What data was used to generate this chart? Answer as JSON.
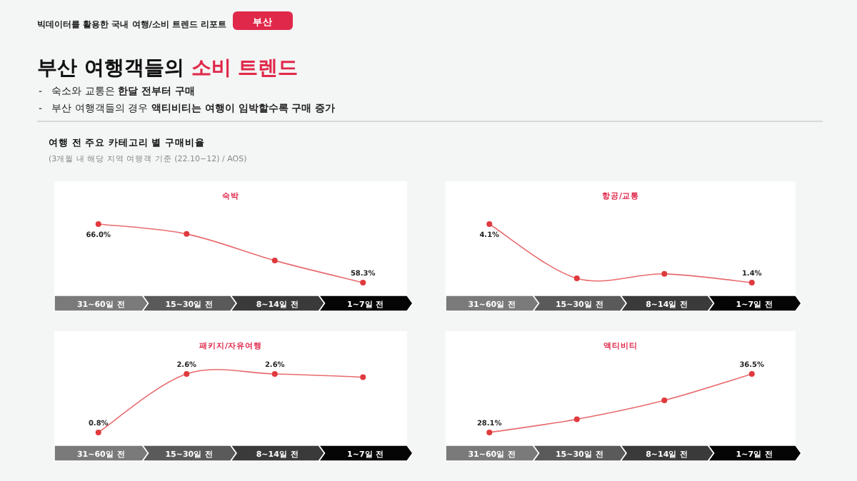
{
  "chart_data": [
    {
      "type": "other",
      "title": "부산 여행객들의 **소비 트렌드**",
      "subtitle": "여행 전 주요 카테고리 별 구매비율",
      "annotations": [
        "빅데이터를 활용한 국내 여행/소비 트렌드 리포트",
        "부산",
        "-   숙소와 교통은 **한달 전부터 구매**",
        "-   부산 여행객들의 경우 **액티비티는 여행이 임박할수록 구매 증가**",
        "(3개월 내 해당 지역 여행객 기준 (22.10~12) / AOS)"
      ]
    },
    {
      "type": "line",
      "title": "숙박",
      "categories": [
        "31~60일 전",
        "15~30일 전",
        "8~14일 전",
        "1~7일 전"
      ],
      "values": [
        66.0,
        64.7,
        61.2,
        58.3
      ],
      "value_labels": [
        "66.0%",
        null,
        null,
        "58.3%"
      ],
      "color": "#e03a3e",
      "tick_labels": "x",
      "marker": "circle"
    },
    {
      "type": "line",
      "title": "항공/교통",
      "categories": [
        "31~60일 전",
        "15~30일 전",
        "8~14일 전",
        "1~7일 전"
      ],
      "values": [
        4.1,
        1.6,
        1.8,
        1.4
      ],
      "value_labels": [
        "4.1%",
        null,
        null,
        "1.4%"
      ],
      "color": "#e03a3e",
      "tick_labels": "x",
      "marker": "circle"
    },
    {
      "type": "line",
      "title": "패키지/자유여행",
      "categories": [
        "31~60일 전",
        "15~30일 전",
        "8~14일 전",
        "1~7일 전"
      ],
      "values": [
        0.8,
        2.6,
        2.6,
        2.5
      ],
      "value_labels": [
        "0.8%",
        "2.6%",
        "2.6%",
        null
      ],
      "color": "#e03a3e",
      "tick_labels": "x",
      "marker": "circle"
    },
    {
      "type": "line",
      "title": "액티비티",
      "categories": [
        "31~60일 전",
        "15~30일 전",
        "8~14일 전",
        "1~7일 전"
      ],
      "values": [
        28.1,
        30.0,
        32.7,
        36.5
      ],
      "value_labels": [
        "28.1%",
        null,
        null,
        "36.5%"
      ],
      "color": "#e03a3e",
      "tick_labels": "x",
      "marker": "circle"
    }
  ]
}
